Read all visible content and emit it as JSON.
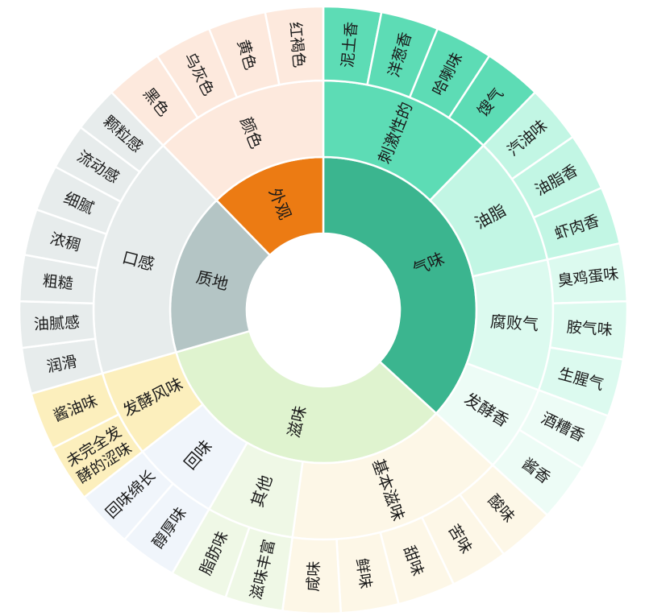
{
  "chart_data": {
    "type": "sunburst",
    "title": "",
    "start": "top",
    "direction": "clockwise",
    "children": [
      {
        "name": "气味",
        "color": "#3bb58f",
        "children": [
          {
            "name": "刺激性的",
            "color": "#5ddcb5",
            "children": [
              {
                "name": "泥土香",
                "value": 1
              },
              {
                "name": "洋葱香",
                "value": 1
              },
              {
                "name": "哈喇味",
                "value": 1
              },
              {
                "name": "馊气",
                "value": 1
              }
            ]
          },
          {
            "name": "油脂",
            "color": "#c2f6e4",
            "children": [
              {
                "name": "汽油味",
                "value": 1
              },
              {
                "name": "油脂香",
                "value": 1
              },
              {
                "name": "虾肉香",
                "value": 1
              }
            ]
          },
          {
            "name": "腐败气",
            "color": "#dcfaef",
            "children": [
              {
                "name": "臭鸡蛋味",
                "value": 1
              },
              {
                "name": "胺气味",
                "value": 1
              },
              {
                "name": "生腥气",
                "value": 1
              }
            ]
          },
          {
            "name": "发酵香",
            "color": "#edfcf6",
            "children": [
              {
                "name": "酒糟香",
                "value": 1
              },
              {
                "name": "酱香",
                "value": 1
              }
            ]
          }
        ]
      },
      {
        "name": "滋味",
        "color": "#dff3cf",
        "children": [
          {
            "name": "基本滋味",
            "color": "#fdf7e7",
            "children": [
              {
                "name": "酸味",
                "value": 1
              },
              {
                "name": "苦味",
                "value": 1
              },
              {
                "name": "甜味",
                "value": 1
              },
              {
                "name": "鲜味",
                "value": 1
              },
              {
                "name": "咸味",
                "value": 1
              }
            ]
          },
          {
            "name": "其他",
            "color": "#eff8e6",
            "children": [
              {
                "name": "滋味丰富",
                "value": 1
              },
              {
                "name": "脂肪味",
                "value": 1
              }
            ]
          },
          {
            "name": "回味",
            "color": "#f0f5fb",
            "children": [
              {
                "name": "醇厚味",
                "value": 1
              },
              {
                "name": "回味绵长",
                "value": 1
              }
            ]
          },
          {
            "name": "发酵风味",
            "color": "#fcefbd",
            "children": [
              {
                "name": "未完全发酵的涩味",
                "value": 1
              },
              {
                "name": "酱油味",
                "value": 1
              }
            ]
          }
        ]
      },
      {
        "name": "质地",
        "color": "#b4c5c5",
        "children": [
          {
            "name": "口感",
            "color": "#e7ecec",
            "children": [
              {
                "name": "润滑",
                "value": 0.8
              },
              {
                "name": "油腻感",
                "value": 0.8
              },
              {
                "name": "粗糙",
                "value": 0.8
              },
              {
                "name": "浓稠",
                "value": 0.8
              },
              {
                "name": "细腻",
                "value": 0.8
              },
              {
                "name": "流动感",
                "value": 0.8
              },
              {
                "name": "颗粒感",
                "value": 0.8
              }
            ]
          }
        ]
      },
      {
        "name": "外观",
        "color": "#ec7b13",
        "children": [
          {
            "name": "颜色",
            "color": "#fde9dd",
            "children": [
              {
                "name": "黑色",
                "value": 1
              },
              {
                "name": "乌灰色",
                "value": 1
              },
              {
                "name": "黄色",
                "value": 1
              },
              {
                "name": "红褐色",
                "value": 1
              }
            ]
          }
        ]
      }
    ]
  }
}
